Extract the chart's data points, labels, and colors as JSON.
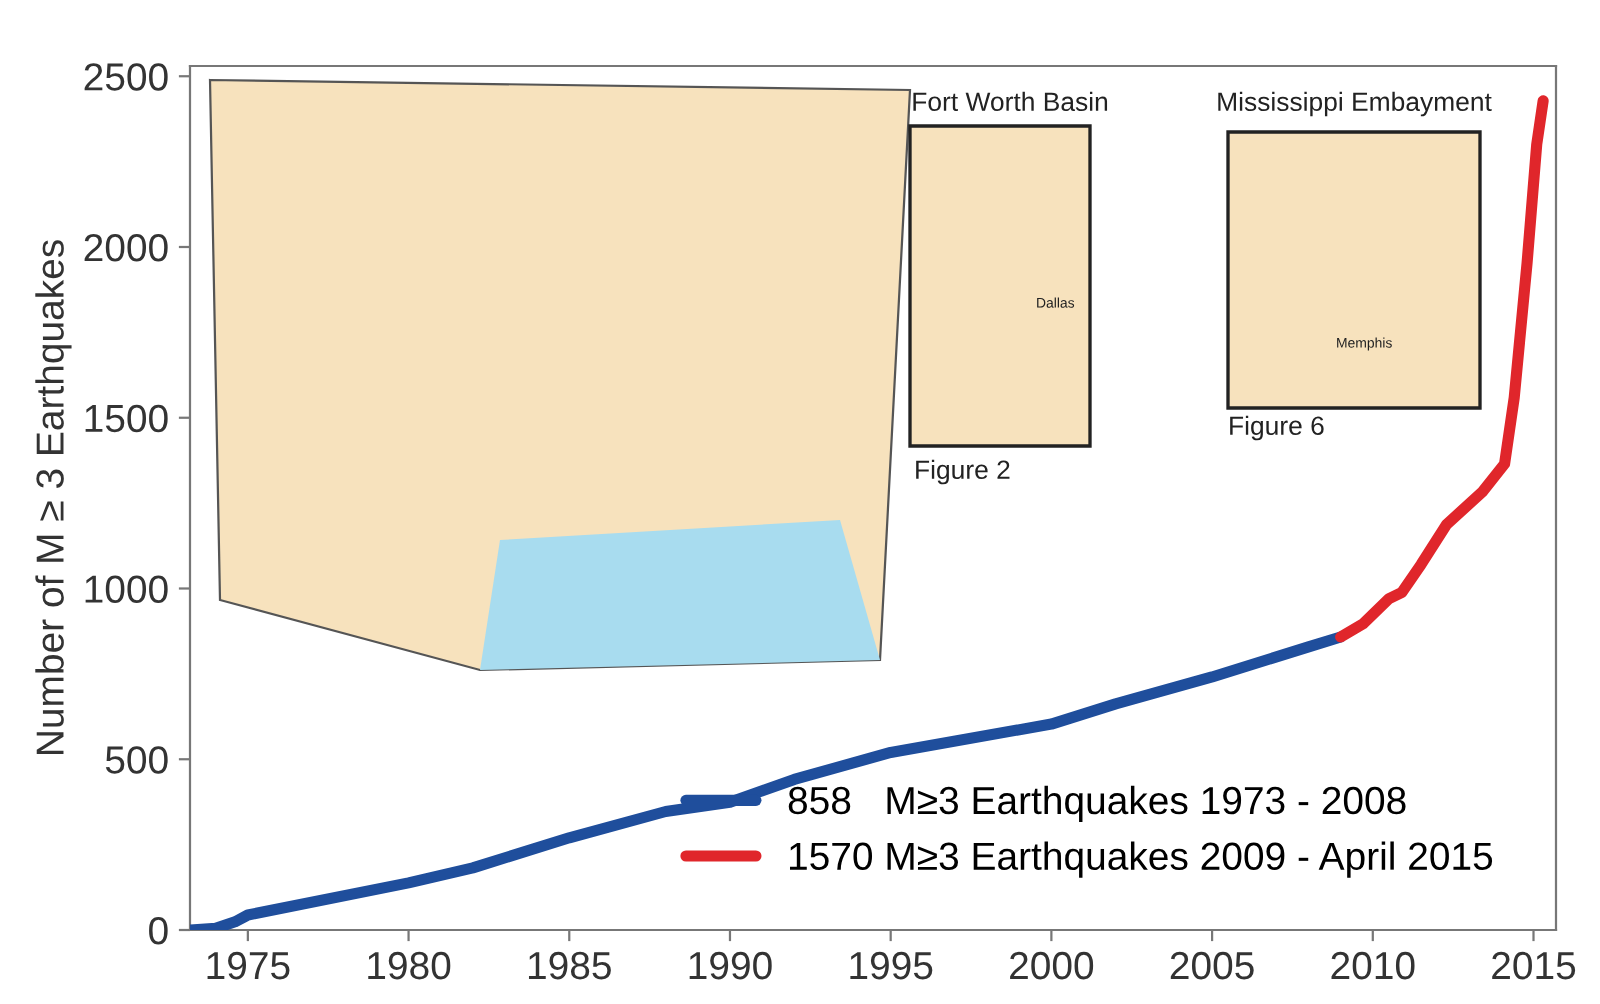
{
  "chart_data": {
    "type": "line",
    "ylabel": "Number of M ≥ 3 Earthquakes",
    "xlim": [
      1973.2,
      2015.7
    ],
    "ylim": [
      0,
      2530
    ],
    "xticks": [
      1975,
      1980,
      1985,
      1990,
      1995,
      2000,
      2005,
      2010,
      2015
    ],
    "yticks": [
      0,
      500,
      1000,
      1500,
      2000,
      2500
    ],
    "grid": false,
    "legend": "bottom right",
    "marker": "none",
    "line_style": "solid",
    "series": [
      {
        "name": "858   M≥3 Earthquakes 1973 - 2008",
        "color": "#1f4e9c",
        "x": [
          1973.2,
          1974.0,
          1974.6,
          1975,
          1980,
          1982,
          1985,
          1988,
          1990,
          1992,
          1995,
          2000,
          2002,
          2005,
          2008,
          2009
        ],
        "values": [
          0,
          5,
          24,
          44,
          138,
          182,
          270,
          347,
          374,
          441,
          520,
          603,
          662,
          741,
          829,
          858
        ]
      },
      {
        "name": "1570 M≥3 Earthquakes 2009 - April 2015",
        "color": "#e0262b",
        "x": [
          2009,
          2009.7,
          2010.5,
          2010.9,
          2011.5,
          2012.3,
          2013.4,
          2014.1,
          2014.4,
          2014.8,
          2015.1,
          2015.3
        ],
        "values": [
          858,
          897,
          970,
          988,
          1070,
          1188,
          1282,
          1365,
          1559,
          1953,
          2300,
          2428
        ]
      }
    ],
    "annotations": [
      "Fort Worth Basin",
      "Figure 2",
      "Dallas",
      "Mississippi Embayment",
      "Figure 6",
      "Memphis"
    ]
  }
}
